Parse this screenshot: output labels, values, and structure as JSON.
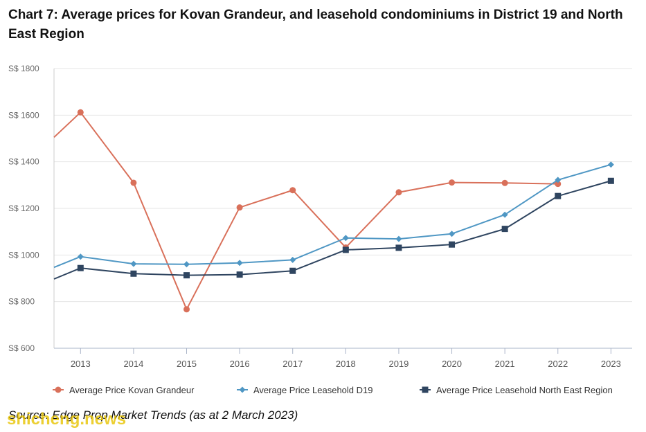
{
  "header": {
    "title": "Chart 7: Average prices for Kovan Grandeur, and leasehold condominiums in District 19 and North East Region"
  },
  "footer": {
    "source": "Source: Edge Prop Market Trends (as at 2 March 2023)",
    "watermark": "shicheng.news"
  },
  "chart_data": {
    "type": "line",
    "title": "Chart 7: Average prices for Kovan Grandeur, and leasehold condominiums in District 19 and North East Region",
    "x_range": [
      2012.5,
      2023.4
    ],
    "ylim": [
      600,
      1800
    ],
    "y_ticks": [
      600,
      800,
      1000,
      1200,
      1400,
      1600,
      1800
    ],
    "y_tick_labels": [
      "S$ 600",
      "S$ 800",
      "S$ 1000",
      "S$ 1200",
      "S$ 1400",
      "S$ 1600",
      "S$ 1800"
    ],
    "x_ticks": [
      2013,
      2014,
      2015,
      2016,
      2017,
      2018,
      2019,
      2020,
      2021,
      2022,
      2023
    ],
    "x_tick_labels": [
      "2013",
      "2014",
      "2015",
      "2016",
      "2017",
      "2018",
      "2019",
      "2020",
      "2021",
      "2022",
      "2023"
    ],
    "grid": true,
    "legend_position": "bottom",
    "series": [
      {
        "name": "Average Price Kovan Grandeur",
        "color": "#d9705a",
        "marker": "circle",
        "lead_in": {
          "x": 2012.5,
          "y": 1505
        },
        "x": [
          2013,
          2014,
          2015,
          2016,
          2017,
          2018,
          2019,
          2020,
          2021,
          2022
        ],
        "values": [
          1612,
          1310,
          767,
          1204,
          1278,
          1032,
          1269,
          1311,
          1309,
          1305
        ]
      },
      {
        "name": "Average Price Leasehold D19",
        "color": "#4f97c4",
        "marker": "diamond",
        "lead_in": {
          "x": 2012.5,
          "y": 947
        },
        "x": [
          2013,
          2014,
          2015,
          2016,
          2017,
          2018,
          2019,
          2020,
          2021,
          2022,
          2023
        ],
        "values": [
          993,
          962,
          960,
          966,
          979,
          1073,
          1069,
          1091,
          1173,
          1322,
          1388
        ]
      },
      {
        "name": "Average Price Leasehold North East Region",
        "color": "#2f4560",
        "marker": "square",
        "lead_in": {
          "x": 2012.5,
          "y": 897
        },
        "x": [
          2013,
          2014,
          2015,
          2016,
          2017,
          2018,
          2019,
          2020,
          2021,
          2022,
          2023
        ],
        "values": [
          944,
          920,
          913,
          916,
          932,
          1022,
          1031,
          1045,
          1112,
          1253,
          1318
        ]
      }
    ]
  }
}
